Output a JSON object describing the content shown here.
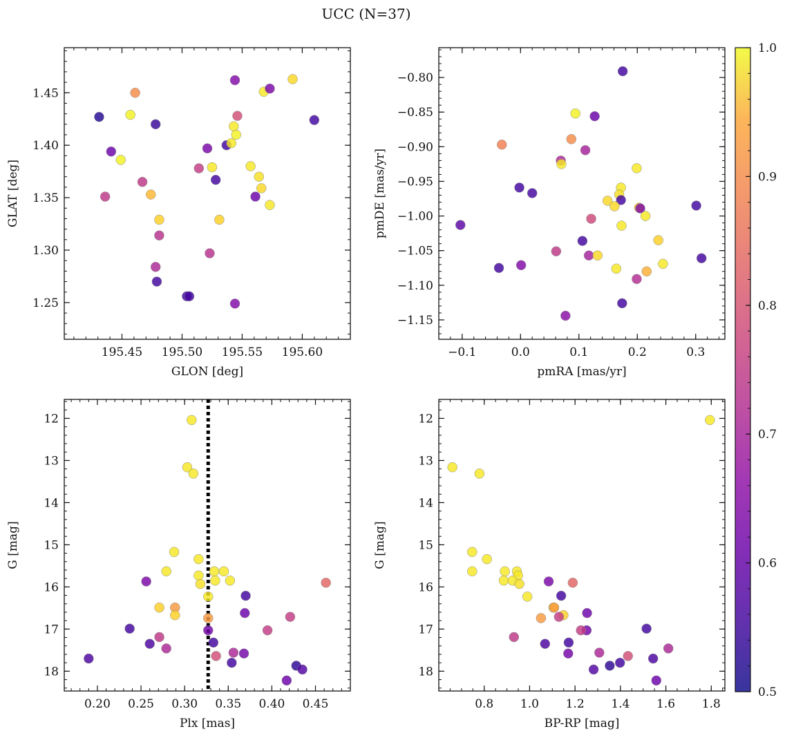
{
  "title": "UCC (N=37)",
  "colorbar": {
    "range": [
      0.5,
      1.0
    ],
    "tick_labels": [
      "0.5",
      "0.6",
      "0.7",
      "0.8",
      "0.9",
      "1.0"
    ],
    "colormap": "plasma"
  },
  "chart_data": [
    {
      "type": "scatter",
      "xlabel": "GLON [deg]",
      "ylabel": "GLAT [deg]",
      "xlim": [
        195.402,
        195.64
      ],
      "ylim": [
        1.215,
        1.493
      ],
      "y_inverted": false,
      "xticks": [
        "195.45",
        "195.50",
        "195.55",
        "195.60"
      ],
      "yticks": [
        "1.25",
        "1.30",
        "1.35",
        "1.40",
        "1.45"
      ],
      "points": [
        {
          "x": 195.431,
          "y": 1.427,
          "c": 0.52
        },
        {
          "x": 195.441,
          "y": 1.394,
          "c": 0.6
        },
        {
          "x": 195.436,
          "y": 1.351,
          "c": 0.72
        },
        {
          "x": 195.449,
          "y": 1.386,
          "c": 0.99
        },
        {
          "x": 195.457,
          "y": 1.429,
          "c": 0.99
        },
        {
          "x": 195.461,
          "y": 1.45,
          "c": 0.86
        },
        {
          "x": 195.467,
          "y": 1.365,
          "c": 0.72
        },
        {
          "x": 195.474,
          "y": 1.353,
          "c": 0.92
        },
        {
          "x": 195.478,
          "y": 1.42,
          "c": 0.54
        },
        {
          "x": 195.478,
          "y": 1.284,
          "c": 0.69
        },
        {
          "x": 195.479,
          "y": 1.27,
          "c": 0.55
        },
        {
          "x": 195.481,
          "y": 1.329,
          "c": 0.95
        },
        {
          "x": 195.481,
          "y": 1.314,
          "c": 0.71
        },
        {
          "x": 195.504,
          "y": 1.256,
          "c": 0.55
        },
        {
          "x": 195.514,
          "y": 1.378,
          "c": 0.73
        },
        {
          "x": 195.521,
          "y": 1.397,
          "c": 0.62
        },
        {
          "x": 195.523,
          "y": 1.297,
          "c": 0.71
        },
        {
          "x": 195.525,
          "y": 1.379,
          "c": 0.98
        },
        {
          "x": 195.528,
          "y": 1.367,
          "c": 0.55
        },
        {
          "x": 195.531,
          "y": 1.329,
          "c": 0.95
        },
        {
          "x": 195.537,
          "y": 1.4,
          "c": 0.55
        },
        {
          "x": 195.541,
          "y": 1.402,
          "c": 0.98
        },
        {
          "x": 195.543,
          "y": 1.418,
          "c": 0.98
        },
        {
          "x": 195.545,
          "y": 1.41,
          "c": 0.99
        },
        {
          "x": 195.544,
          "y": 1.462,
          "c": 0.63
        },
        {
          "x": 195.544,
          "y": 1.249,
          "c": 0.63
        },
        {
          "x": 195.546,
          "y": 1.428,
          "c": 0.76
        },
        {
          "x": 195.557,
          "y": 1.38,
          "c": 0.98
        },
        {
          "x": 195.561,
          "y": 1.351,
          "c": 0.6
        },
        {
          "x": 195.564,
          "y": 1.37,
          "c": 0.97
        },
        {
          "x": 195.566,
          "y": 1.359,
          "c": 0.96
        },
        {
          "x": 195.568,
          "y": 1.451,
          "c": 0.98
        },
        {
          "x": 195.573,
          "y": 1.343,
          "c": 0.98
        },
        {
          "x": 195.573,
          "y": 1.454,
          "c": 0.62
        },
        {
          "x": 195.592,
          "y": 1.463,
          "c": 0.96
        },
        {
          "x": 195.61,
          "y": 1.424,
          "c": 0.55
        },
        {
          "x": 195.506,
          "y": 1.256,
          "c": 0.55
        }
      ]
    },
    {
      "type": "scatter",
      "xlabel": "pmRA [mas/yr]",
      "ylabel": "pmDE [mas/yr]",
      "xlim": [
        -0.14,
        0.35
      ],
      "ylim": [
        -1.178,
        -0.757
      ],
      "y_inverted": false,
      "xticks": [
        "−0.1",
        "0.0",
        "0.1",
        "0.2",
        "0.3"
      ],
      "yticks": [
        "−0.80",
        "−0.85",
        "−0.90",
        "−0.95",
        "−1.00",
        "−1.05",
        "−1.10",
        "−1.15"
      ],
      "points": [
        {
          "x": 0.175,
          "y": -0.791,
          "c": 0.55
        },
        {
          "x": 0.094,
          "y": -0.852,
          "c": 0.99
        },
        {
          "x": 0.127,
          "y": -0.856,
          "c": 0.6
        },
        {
          "x": -0.032,
          "y": -0.897,
          "c": 0.84
        },
        {
          "x": 0.087,
          "y": -0.889,
          "c": 0.86
        },
        {
          "x": 0.111,
          "y": -0.905,
          "c": 0.68
        },
        {
          "x": 0.069,
          "y": -0.92,
          "c": 0.69
        },
        {
          "x": 0.07,
          "y": -0.925,
          "c": 0.98
        },
        {
          "x": 0.199,
          "y": -0.931,
          "c": 0.98
        },
        {
          "x": -0.002,
          "y": -0.959,
          "c": 0.55
        },
        {
          "x": 0.02,
          "y": -0.967,
          "c": 0.55
        },
        {
          "x": 0.172,
          "y": -0.959,
          "c": 0.98
        },
        {
          "x": 0.169,
          "y": -0.969,
          "c": 0.97
        },
        {
          "x": 0.172,
          "y": -0.977,
          "c": 0.55
        },
        {
          "x": 0.149,
          "y": -0.978,
          "c": 0.96
        },
        {
          "x": 0.161,
          "y": -0.986,
          "c": 0.96
        },
        {
          "x": 0.203,
          "y": -0.988,
          "c": 0.95
        },
        {
          "x": 0.205,
          "y": -0.989,
          "c": 0.62
        },
        {
          "x": 0.214,
          "y": -1.0,
          "c": 0.98
        },
        {
          "x": 0.301,
          "y": -0.985,
          "c": 0.55
        },
        {
          "x": -0.103,
          "y": -1.013,
          "c": 0.58
        },
        {
          "x": 0.121,
          "y": -1.004,
          "c": 0.75
        },
        {
          "x": 0.173,
          "y": -1.014,
          "c": 0.98
        },
        {
          "x": 0.106,
          "y": -1.036,
          "c": 0.55
        },
        {
          "x": 0.236,
          "y": -1.035,
          "c": 0.95
        },
        {
          "x": 0.061,
          "y": -1.051,
          "c": 0.72
        },
        {
          "x": 0.117,
          "y": -1.057,
          "c": 0.68
        },
        {
          "x": 0.132,
          "y": -1.057,
          "c": 0.96
        },
        {
          "x": 0.244,
          "y": -1.069,
          "c": 0.98
        },
        {
          "x": 0.31,
          "y": -1.061,
          "c": 0.55
        },
        {
          "x": -0.037,
          "y": -1.075,
          "c": 0.55
        },
        {
          "x": 0.001,
          "y": -1.071,
          "c": 0.63
        },
        {
          "x": 0.164,
          "y": -1.076,
          "c": 0.98
        },
        {
          "x": 0.216,
          "y": -1.08,
          "c": 0.91
        },
        {
          "x": 0.199,
          "y": -1.091,
          "c": 0.7
        },
        {
          "x": 0.174,
          "y": -1.126,
          "c": 0.55
        },
        {
          "x": 0.077,
          "y": -1.144,
          "c": 0.64
        }
      ]
    },
    {
      "type": "scatter",
      "xlabel": "Plx [mas]",
      "ylabel": "G [mag]",
      "xlim": [
        0.162,
        0.49
      ],
      "ylim": [
        18.47,
        11.55
      ],
      "y_inverted": true,
      "xticks": [
        "0.20",
        "0.25",
        "0.30",
        "0.35",
        "0.40",
        "0.45"
      ],
      "yticks": [
        "12",
        "13",
        "14",
        "15",
        "16",
        "17",
        "18"
      ],
      "vline": {
        "x": 0.327,
        "style": "dotted"
      },
      "points": [
        {
          "x": 0.308,
          "y": 12.04,
          "c": 0.98
        },
        {
          "x": 0.303,
          "y": 13.16,
          "c": 0.98
        },
        {
          "x": 0.31,
          "y": 13.31,
          "c": 0.98
        },
        {
          "x": 0.288,
          "y": 15.17,
          "c": 0.98
        },
        {
          "x": 0.316,
          "y": 15.34,
          "c": 0.98
        },
        {
          "x": 0.279,
          "y": 15.63,
          "c": 0.98
        },
        {
          "x": 0.334,
          "y": 15.63,
          "c": 0.98
        },
        {
          "x": 0.345,
          "y": 15.63,
          "c": 0.98
        },
        {
          "x": 0.316,
          "y": 15.73,
          "c": 0.98
        },
        {
          "x": 0.335,
          "y": 15.85,
          "c": 0.98
        },
        {
          "x": 0.352,
          "y": 15.85,
          "c": 0.98
        },
        {
          "x": 0.318,
          "y": 15.93,
          "c": 0.97
        },
        {
          "x": 0.256,
          "y": 15.87,
          "c": 0.62
        },
        {
          "x": 0.462,
          "y": 15.9,
          "c": 0.8
        },
        {
          "x": 0.327,
          "y": 16.23,
          "c": 0.98
        },
        {
          "x": 0.37,
          "y": 16.21,
          "c": 0.55
        },
        {
          "x": 0.271,
          "y": 16.49,
          "c": 0.95
        },
        {
          "x": 0.289,
          "y": 16.49,
          "c": 0.88
        },
        {
          "x": 0.289,
          "y": 16.67,
          "c": 0.95
        },
        {
          "x": 0.369,
          "y": 16.62,
          "c": 0.6
        },
        {
          "x": 0.327,
          "y": 16.74,
          "c": 0.88
        },
        {
          "x": 0.421,
          "y": 16.71,
          "c": 0.73
        },
        {
          "x": 0.237,
          "y": 16.99,
          "c": 0.55
        },
        {
          "x": 0.327,
          "y": 17.03,
          "c": 0.61
        },
        {
          "x": 0.395,
          "y": 17.03,
          "c": 0.73
        },
        {
          "x": 0.271,
          "y": 17.19,
          "c": 0.72
        },
        {
          "x": 0.26,
          "y": 17.35,
          "c": 0.56
        },
        {
          "x": 0.333,
          "y": 17.32,
          "c": 0.55
        },
        {
          "x": 0.279,
          "y": 17.46,
          "c": 0.69
        },
        {
          "x": 0.356,
          "y": 17.56,
          "c": 0.69
        },
        {
          "x": 0.368,
          "y": 17.58,
          "c": 0.61
        },
        {
          "x": 0.336,
          "y": 17.64,
          "c": 0.76
        },
        {
          "x": 0.19,
          "y": 17.7,
          "c": 0.56
        },
        {
          "x": 0.354,
          "y": 17.8,
          "c": 0.55
        },
        {
          "x": 0.428,
          "y": 17.87,
          "c": 0.53
        },
        {
          "x": 0.435,
          "y": 17.96,
          "c": 0.57
        },
        {
          "x": 0.417,
          "y": 18.22,
          "c": 0.6
        }
      ]
    },
    {
      "type": "scatter",
      "xlabel": "BP-RP [mag]",
      "ylabel": "G [mag]",
      "xlim": [
        0.6,
        1.86
      ],
      "ylim": [
        18.47,
        11.55
      ],
      "y_inverted": true,
      "xticks": [
        "0.8",
        "1.0",
        "1.2",
        "1.4",
        "1.6",
        "1.8"
      ],
      "yticks": [
        "12",
        "13",
        "14",
        "15",
        "16",
        "17",
        "18"
      ],
      "points": [
        {
          "x": 1.794,
          "y": 12.04,
          "c": 0.98
        },
        {
          "x": 0.66,
          "y": 13.16,
          "c": 0.98
        },
        {
          "x": 0.779,
          "y": 13.31,
          "c": 0.98
        },
        {
          "x": 0.747,
          "y": 15.17,
          "c": 0.98
        },
        {
          "x": 0.812,
          "y": 15.34,
          "c": 0.98
        },
        {
          "x": 0.747,
          "y": 15.63,
          "c": 0.98
        },
        {
          "x": 0.891,
          "y": 15.63,
          "c": 0.98
        },
        {
          "x": 0.944,
          "y": 15.63,
          "c": 0.98
        },
        {
          "x": 0.949,
          "y": 15.73,
          "c": 0.98
        },
        {
          "x": 0.886,
          "y": 15.85,
          "c": 0.98
        },
        {
          "x": 0.925,
          "y": 15.85,
          "c": 0.98
        },
        {
          "x": 0.955,
          "y": 15.93,
          "c": 0.97
        },
        {
          "x": 1.084,
          "y": 15.87,
          "c": 0.62
        },
        {
          "x": 1.19,
          "y": 15.9,
          "c": 0.8
        },
        {
          "x": 0.99,
          "y": 16.23,
          "c": 0.98
        },
        {
          "x": 1.139,
          "y": 16.21,
          "c": 0.55
        },
        {
          "x": 1.105,
          "y": 16.49,
          "c": 0.95
        },
        {
          "x": 1.108,
          "y": 16.49,
          "c": 0.88
        },
        {
          "x": 1.149,
          "y": 16.67,
          "c": 0.95
        },
        {
          "x": 1.253,
          "y": 16.62,
          "c": 0.6
        },
        {
          "x": 1.05,
          "y": 16.74,
          "c": 0.88
        },
        {
          "x": 1.129,
          "y": 16.71,
          "c": 0.73
        },
        {
          "x": 1.515,
          "y": 16.99,
          "c": 0.55
        },
        {
          "x": 1.251,
          "y": 17.03,
          "c": 0.61
        },
        {
          "x": 1.226,
          "y": 17.03,
          "c": 0.73
        },
        {
          "x": 0.931,
          "y": 17.19,
          "c": 0.72
        },
        {
          "x": 1.068,
          "y": 17.35,
          "c": 0.56
        },
        {
          "x": 1.172,
          "y": 17.32,
          "c": 0.55
        },
        {
          "x": 1.611,
          "y": 17.46,
          "c": 0.69
        },
        {
          "x": 1.307,
          "y": 17.56,
          "c": 0.69
        },
        {
          "x": 1.17,
          "y": 17.58,
          "c": 0.61
        },
        {
          "x": 1.433,
          "y": 17.64,
          "c": 0.76
        },
        {
          "x": 1.544,
          "y": 17.7,
          "c": 0.56
        },
        {
          "x": 1.398,
          "y": 17.8,
          "c": 0.55
        },
        {
          "x": 1.353,
          "y": 17.87,
          "c": 0.53
        },
        {
          "x": 1.282,
          "y": 17.96,
          "c": 0.57
        },
        {
          "x": 1.558,
          "y": 18.22,
          "c": 0.6
        }
      ]
    }
  ]
}
